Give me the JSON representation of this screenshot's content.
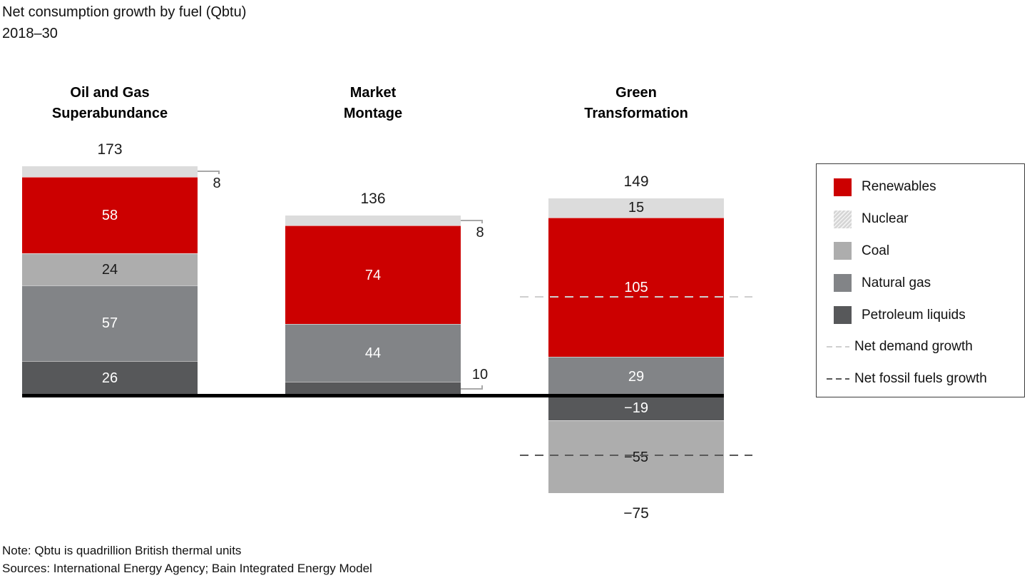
{
  "title": {
    "line1": "Net consumption growth by fuel (Qbtu)",
    "line2": "2018–30"
  },
  "note": {
    "line1": "Note: Qbtu is quadrillion British thermal units",
    "line2": "Sources: International Energy Agency; Bain Integrated Energy Model"
  },
  "colors": {
    "renewables": "#cc0000",
    "nuclear": "#dcdcdc",
    "coal": "#adadad",
    "natural_gas": "#828487",
    "petroleum_liquids": "#57585a",
    "net_demand_line": "#cfcfcf",
    "net_fossil_line": "#595959",
    "axis": "#000000",
    "light_label_text": "#1a1a1a",
    "dark_label_text": "#ffffff"
  },
  "chart_data": {
    "type": "bar",
    "subtype": "stacked-diverging",
    "title": "Net consumption growth by fuel (Qbtu)",
    "period": "2018–30",
    "unit": "Qbtu",
    "categories": [
      "Oil and Gas Superabundance",
      "Market Montage",
      "Green Transformation"
    ],
    "scenarios": [
      {
        "name": "Oil and Gas Superabundance",
        "name_lines": [
          "Oil and Gas",
          "Superabundance"
        ],
        "total": 173,
        "total_label": "173",
        "segments": [
          {
            "fuel": "Nuclear",
            "value": 8,
            "label": "8",
            "label_placement": "callout-below"
          },
          {
            "fuel": "Renewables",
            "value": 58,
            "label": "58"
          },
          {
            "fuel": "Coal",
            "value": 24,
            "label": "24"
          },
          {
            "fuel": "Natural gas",
            "value": 57,
            "label": "57"
          },
          {
            "fuel": "Petroleum liquids",
            "value": 26,
            "label": "26"
          }
        ]
      },
      {
        "name": "Market Montage",
        "name_lines": [
          "Market",
          "Montage"
        ],
        "total": 136,
        "total_label": "136",
        "segments": [
          {
            "fuel": "Nuclear",
            "value": 8,
            "label": "8",
            "label_placement": "callout-below"
          },
          {
            "fuel": "Renewables",
            "value": 74,
            "label": "74"
          },
          {
            "fuel": "Natural gas",
            "value": 44,
            "label": "44"
          },
          {
            "fuel": "Petroleum liquids",
            "value": 10,
            "label": "10",
            "label_placement": "callout-above"
          }
        ]
      },
      {
        "name": "Green Transformation",
        "name_lines": [
          "Green",
          "Transformation"
        ],
        "total": 149,
        "total_label": "149",
        "segments": [
          {
            "fuel": "Nuclear",
            "value": 15,
            "label": "15"
          },
          {
            "fuel": "Renewables",
            "value": 105,
            "label": "105"
          },
          {
            "fuel": "Natural gas",
            "value": 29,
            "label": "29"
          },
          {
            "fuel": "Petroleum liquids",
            "value": -19,
            "label": "−19"
          },
          {
            "fuel": "Coal",
            "value": -55,
            "label": "−55"
          }
        ],
        "negative_total_label": "−75"
      }
    ],
    "reference_lines": [
      {
        "name": "Net demand growth",
        "value": 75,
        "style": "light-dashed"
      },
      {
        "name": "Net fossil fuels growth",
        "value": -45,
        "style": "dark-dashed"
      }
    ],
    "ylim": [
      -75,
      181
    ],
    "grid": false,
    "legend_position": "right"
  },
  "legend": {
    "items": [
      {
        "label": "Renewables",
        "swatch": "renewables"
      },
      {
        "label": "Nuclear",
        "swatch": "nuclear"
      },
      {
        "label": "Coal",
        "swatch": "coal"
      },
      {
        "label": "Natural gas",
        "swatch": "natural_gas"
      },
      {
        "label": "Petroleum liquids",
        "swatch": "petroleum_liquids"
      },
      {
        "label": "Net demand growth",
        "swatch": "dash-light"
      },
      {
        "label": "Net fossil fuels growth",
        "swatch": "dash-dark"
      }
    ]
  }
}
